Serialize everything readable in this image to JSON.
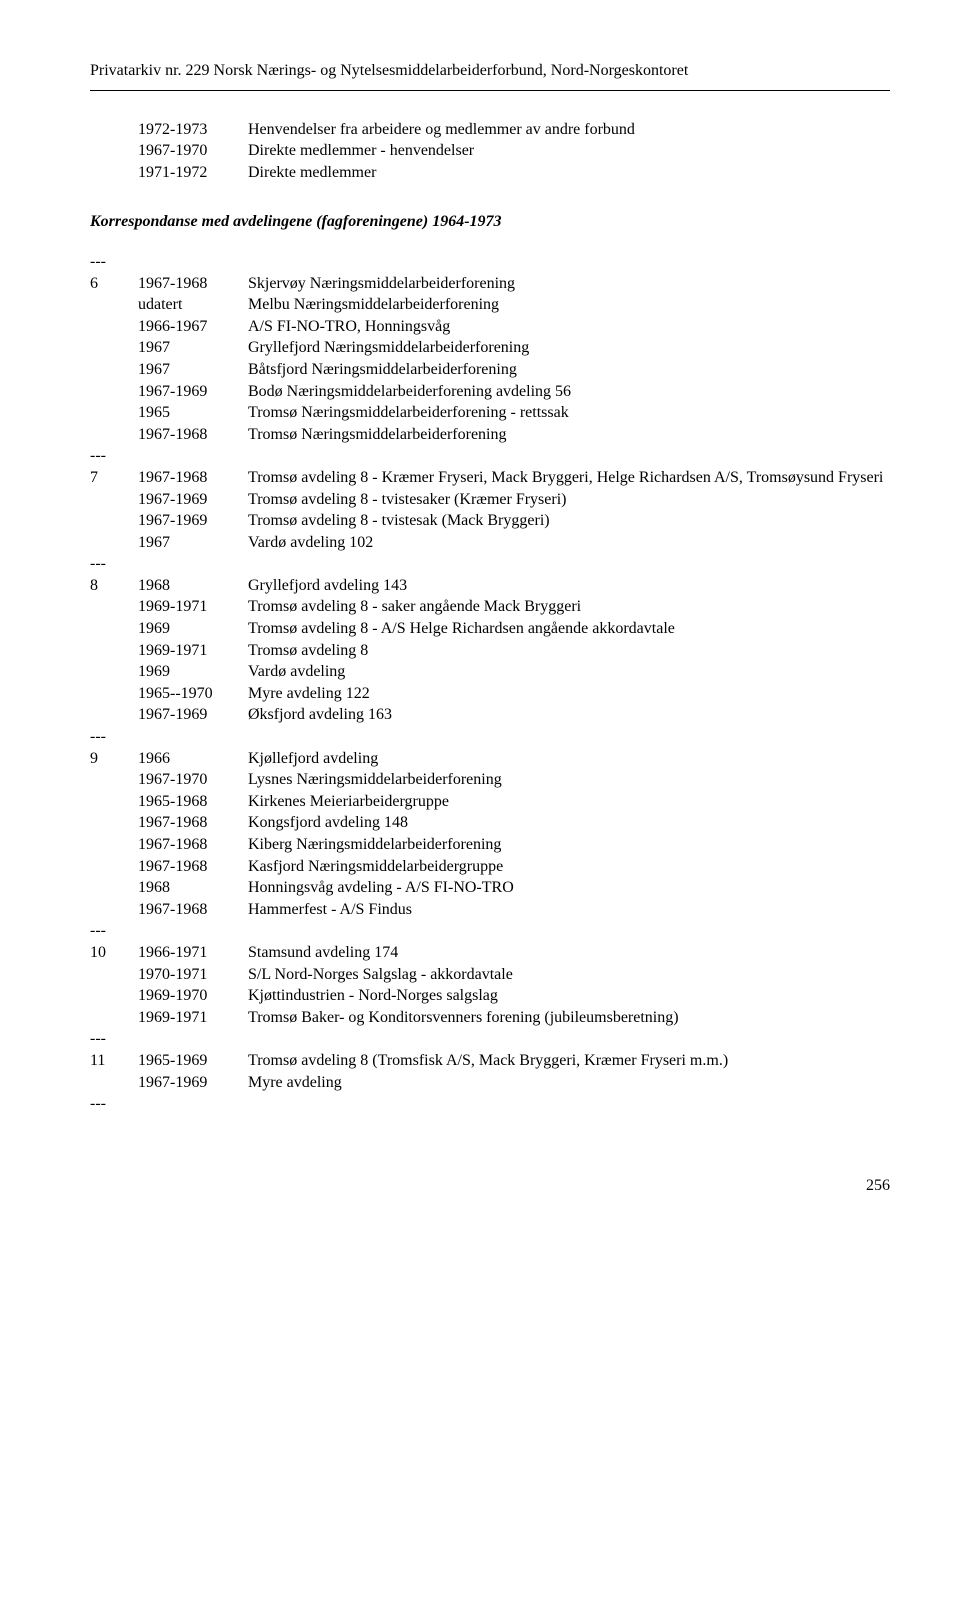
{
  "header": "Privatarkiv nr. 229 Norsk Nærings- og Nytelsesmiddelarbeiderforbund, Nord-Norgeskontoret",
  "block1": [
    {
      "a": "",
      "b": "1972-1973",
      "c": "Henvendelser fra arbeidere og medlemmer av andre forbund"
    },
    {
      "a": "",
      "b": "1967-1970",
      "c": "Direkte medlemmer - henvendelser"
    },
    {
      "a": "",
      "b": "1971-1972",
      "c": "Direkte medlemmer"
    }
  ],
  "heading": "Korrespondanse med avdelingene (fagforeningene) 1964-1973",
  "groups": [
    [
      {
        "a": "6",
        "b": "1967-1968",
        "c": "Skjervøy Næringsmiddelarbeiderforening"
      },
      {
        "a": "",
        "b": "udatert",
        "c": "Melbu Næringsmiddelarbeiderforening"
      },
      {
        "a": "",
        "b": "1966-1967",
        "c": "A/S FI-NO-TRO, Honningsvåg"
      },
      {
        "a": "",
        "b": "1967",
        "c": "Gryllefjord Næringsmiddelarbeiderforening"
      },
      {
        "a": "",
        "b": "1967",
        "c": "Båtsfjord Næringsmiddelarbeiderforening"
      },
      {
        "a": "",
        "b": "1967-1969",
        "c": "Bodø Næringsmiddelarbeiderforening avdeling 56"
      },
      {
        "a": "",
        "b": "1965",
        "c": "Tromsø Næringsmiddelarbeiderforening - rettssak"
      },
      {
        "a": "",
        "b": "1967-1968",
        "c": "Tromsø Næringsmiddelarbeiderforening"
      }
    ],
    [
      {
        "a": "7",
        "b": "1967-1968",
        "c": "Tromsø avdeling 8 - Kræmer Fryseri, Mack Bryggeri, Helge Richardsen A/S, Tromsøysund Fryseri"
      },
      {
        "a": "",
        "b": "1967-1969",
        "c": "Tromsø avdeling 8 - tvistesaker (Kræmer Fryseri)"
      },
      {
        "a": "",
        "b": "1967-1969",
        "c": "Tromsø avdeling 8 - tvistesak (Mack Bryggeri)"
      },
      {
        "a": "",
        "b": "1967",
        "c": "Vardø avdeling 102"
      }
    ],
    [
      {
        "a": "8",
        "b": "1968",
        "c": "Gryllefjord avdeling 143"
      },
      {
        "a": "",
        "b": "1969-1971",
        "c": "Tromsø avdeling 8 - saker angående Mack Bryggeri"
      },
      {
        "a": "",
        "b": "1969",
        "c": "Tromsø avdeling 8 - A/S Helge Richardsen angående akkordavtale"
      },
      {
        "a": "",
        "b": "1969-1971",
        "c": "Tromsø avdeling 8"
      },
      {
        "a": "",
        "b": "1969",
        "c": "Vardø avdeling"
      },
      {
        "a": "",
        "b": "1965--1970",
        "c": "Myre avdeling 122"
      },
      {
        "a": "",
        "b": "1967-1969",
        "c": "Øksfjord avdeling 163"
      }
    ],
    [
      {
        "a": "9",
        "b": "1966",
        "c": "Kjøllefjord avdeling"
      },
      {
        "a": "",
        "b": "1967-1970",
        "c": "Lysnes Næringsmiddelarbeiderforening"
      },
      {
        "a": "",
        "b": "1965-1968",
        "c": "Kirkenes Meieriarbeidergruppe"
      },
      {
        "a": "",
        "b": "1967-1968",
        "c": "Kongsfjord avdeling 148"
      },
      {
        "a": "",
        "b": "1967-1968",
        "c": "Kiberg Næringsmiddelarbeiderforening"
      },
      {
        "a": "",
        "b": "1967-1968",
        "c": "Kasfjord Næringsmiddelarbeidergruppe"
      },
      {
        "a": "",
        "b": "1968",
        "c": "Honningsvåg avdeling - A/S FI-NO-TRO"
      },
      {
        "a": "",
        "b": "1967-1968",
        "c": "Hammerfest - A/S Findus"
      }
    ],
    [
      {
        "a": "10",
        "b": "1966-1971",
        "c": "Stamsund avdeling 174"
      },
      {
        "a": "",
        "b": "1970-1971",
        "c": "S/L Nord-Norges Salgslag - akkordavtale"
      },
      {
        "a": "",
        "b": "1969-1970",
        "c": "Kjøttindustrien - Nord-Norges salgslag"
      },
      {
        "a": "",
        "b": "1969-1971",
        "c": "Tromsø Baker- og Konditorsvenners forening (jubileumsberetning)"
      }
    ],
    [
      {
        "a": "11",
        "b": "1965-1969",
        "c": "Tromsø avdeling 8 (Tromsfisk A/S, Mack Bryggeri, Kræmer Fryseri m.m.)"
      },
      {
        "a": "",
        "b": "1967-1969",
        "c": "Myre avdeling"
      }
    ]
  ],
  "sep": "---",
  "pageNumber": "256"
}
